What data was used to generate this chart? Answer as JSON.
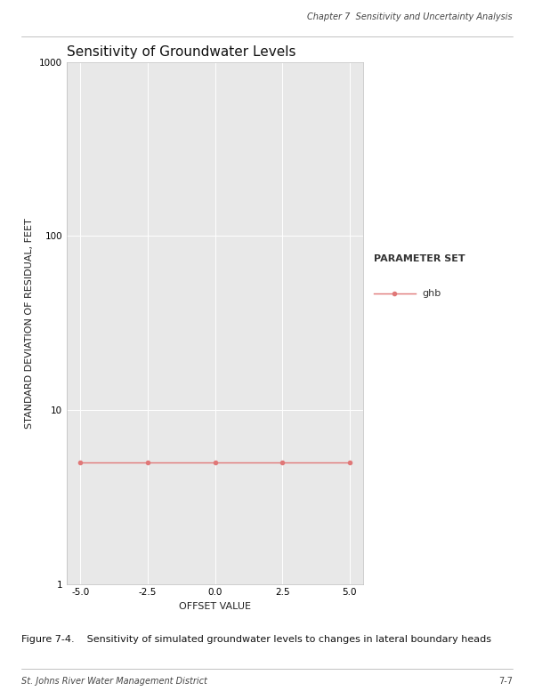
{
  "title": "Sensitivity of Groundwater Levels",
  "xlabel": "OFFSET VALUE",
  "ylabel": "STANDARD DEVIATION OF RESIDUAL, FEET",
  "x_values": [
    -5.0,
    -2.5,
    0.0,
    2.5,
    5.0
  ],
  "y_values": [
    5.0,
    5.0,
    5.0,
    5.0,
    5.0
  ],
  "line_color": "#e07878",
  "marker_color": "#e07878",
  "marker_style": "o",
  "marker_size": 3,
  "line_width": 1.0,
  "xlim": [
    -5.5,
    5.5
  ],
  "ylim_log": [
    1,
    1000
  ],
  "yticks": [
    1,
    10,
    100,
    1000
  ],
  "xticks": [
    -5.0,
    -2.5,
    0.0,
    2.5,
    5.0
  ],
  "xtick_labels": [
    "-5.0",
    "-2.5",
    "0.0",
    "2.5",
    "5.0"
  ],
  "legend_title": "PARAMETER SET",
  "legend_label": "ghb",
  "plot_bg_color": "#e8e8e8",
  "grid_color": "#ffffff",
  "header_text": "Chapter 7  Sensitivity and Uncertainty Analysis",
  "footer_left": "St. Johns River Water Management District",
  "footer_right": "7-7",
  "caption": "Figure 7-4.    Sensitivity of simulated groundwater levels to changes in lateral boundary heads",
  "title_fontsize": 11,
  "axis_label_fontsize": 8,
  "tick_fontsize": 7.5,
  "legend_title_fontsize": 8,
  "legend_label_fontsize": 8,
  "header_fontsize": 7,
  "footer_fontsize": 7,
  "caption_fontsize": 8
}
